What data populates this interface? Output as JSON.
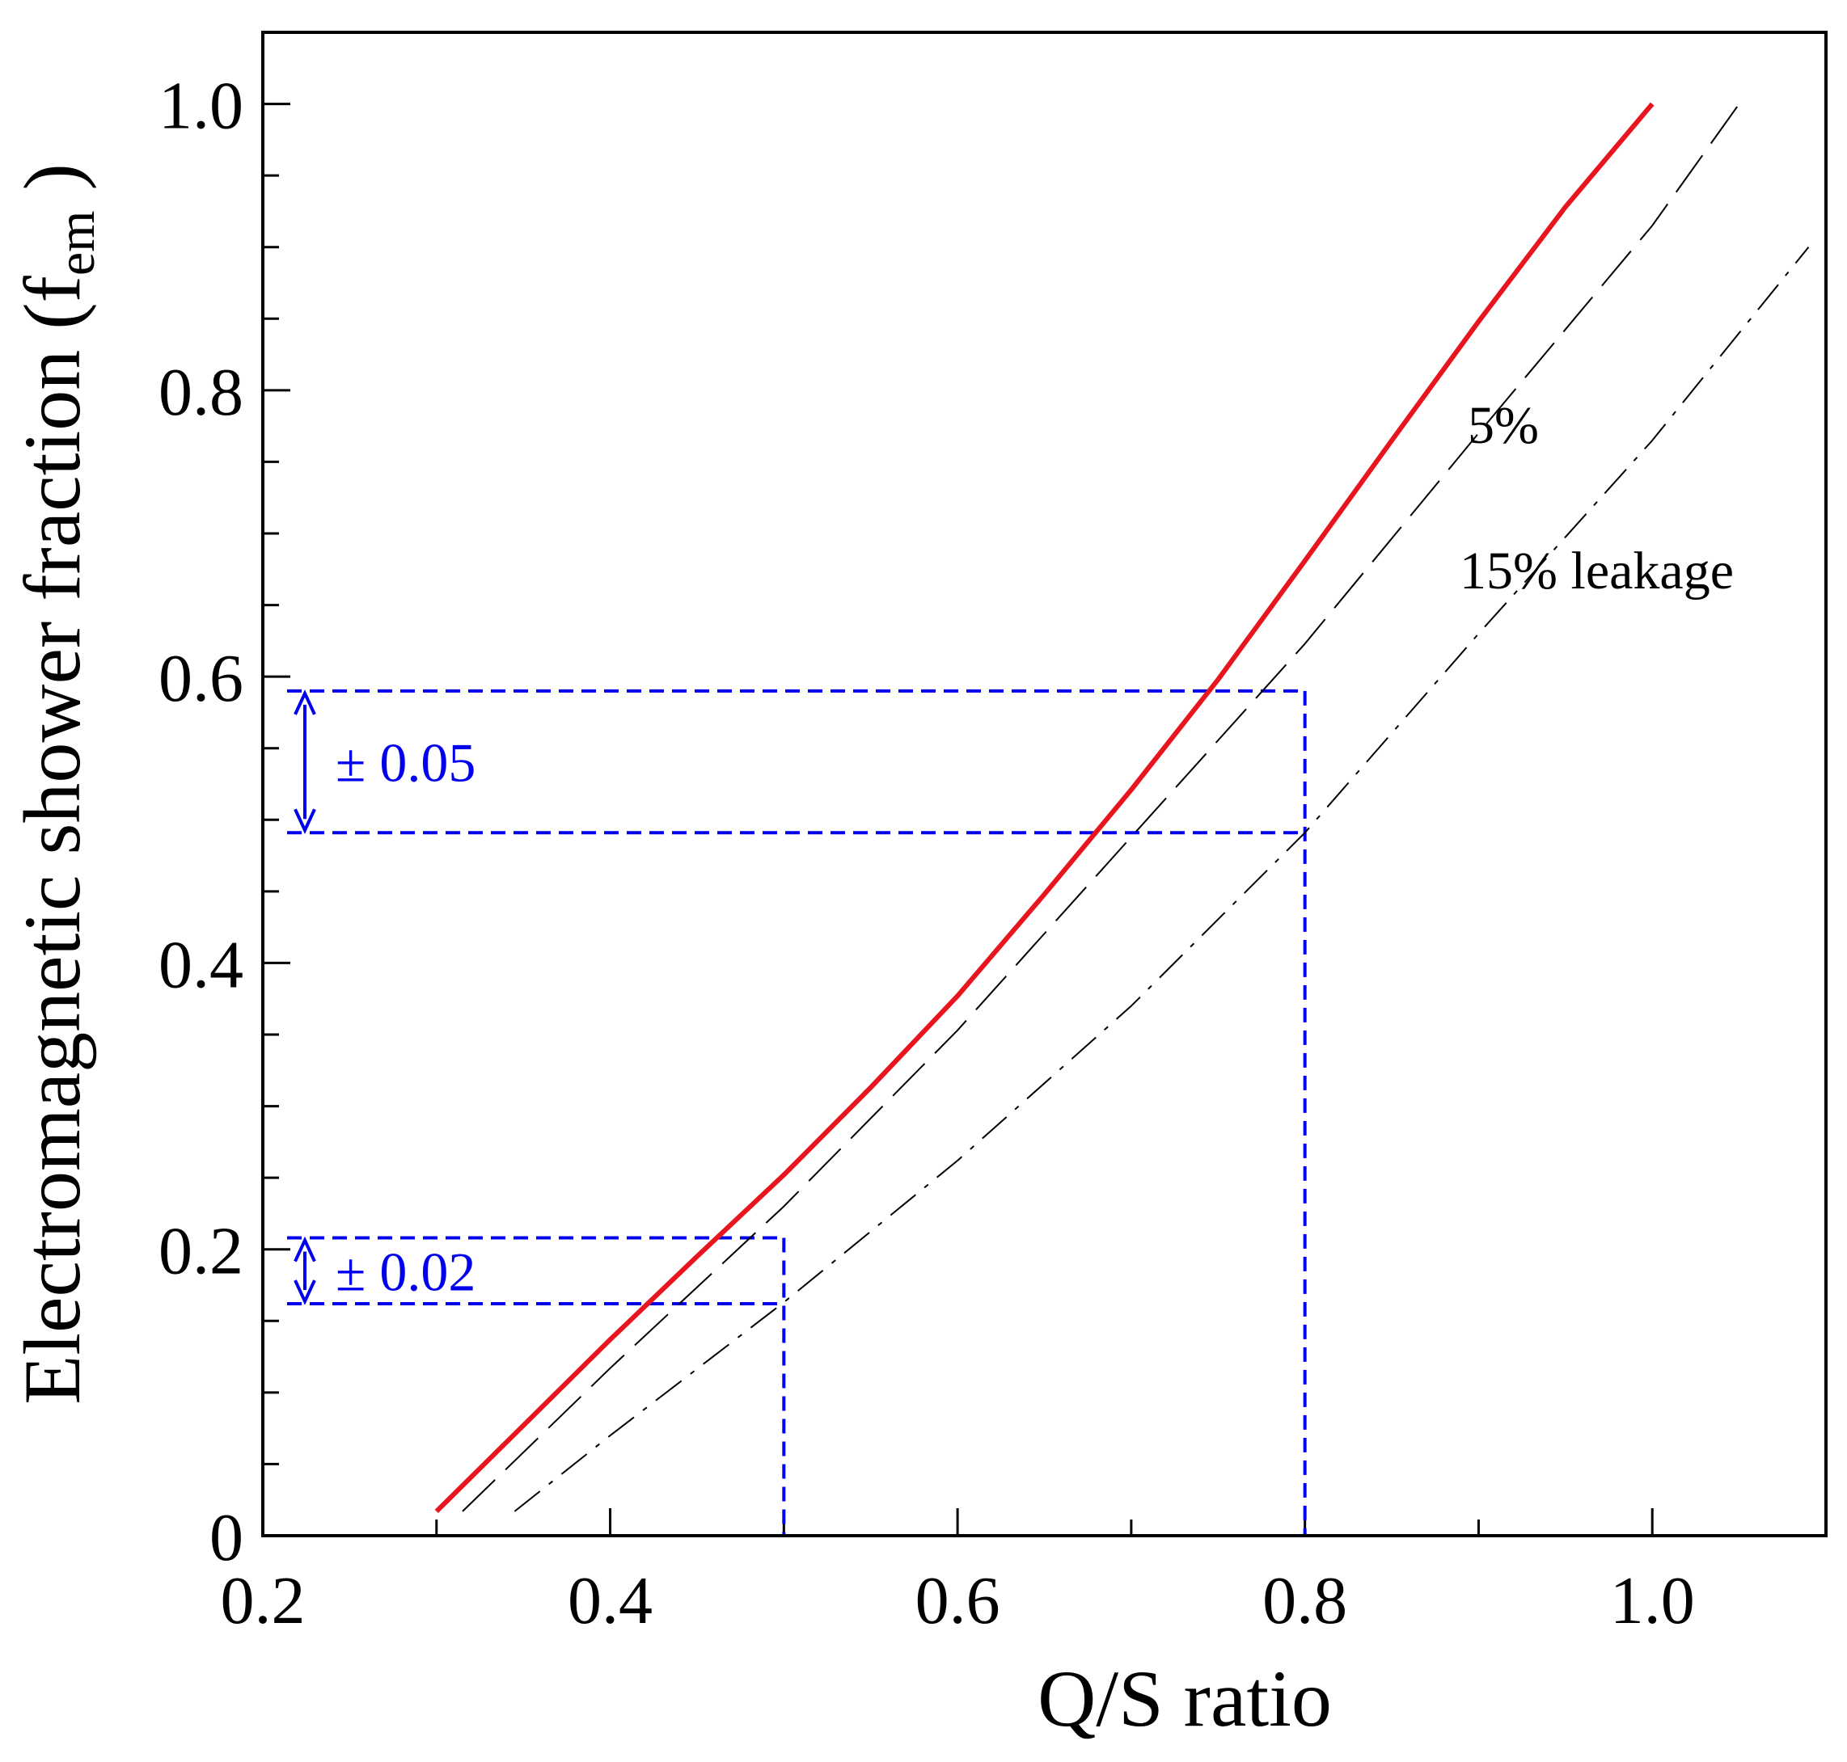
{
  "chart_data": {
    "type": "line",
    "xlabel": "Q/S ratio",
    "ylabel": "Electromagnetic shower fraction",
    "ylabel_symbol": "f",
    "ylabel_subscript": "em",
    "xlim": [
      0.2,
      1.1
    ],
    "ylim": [
      0.0,
      1.05
    ],
    "x_ticks": [
      {
        "value": 0.2,
        "label": "0.2"
      },
      {
        "value": 0.4,
        "label": "0.4"
      },
      {
        "value": 0.6,
        "label": "0.6"
      },
      {
        "value": 0.8,
        "label": "0.8"
      },
      {
        "value": 1.0,
        "label": "1.0"
      }
    ],
    "y_ticks": [
      {
        "value": 0.0,
        "label": "0"
      },
      {
        "value": 0.2,
        "label": "0.2"
      },
      {
        "value": 0.4,
        "label": "0.4"
      },
      {
        "value": 0.6,
        "label": "0.6"
      },
      {
        "value": 0.8,
        "label": "0.8"
      },
      {
        "value": 1.0,
        "label": "1.0"
      }
    ],
    "x_minor_step": 0.1,
    "y_minor_step": 0.05,
    "grid": false,
    "series": [
      {
        "name": "",
        "style": "solid",
        "color": "#e8141e",
        "x": [
          0.3,
          0.35,
          0.4,
          0.45,
          0.5,
          0.55,
          0.6,
          0.65,
          0.7,
          0.75,
          0.8,
          0.85,
          0.9,
          0.95,
          1.0
        ],
        "y": [
          0.017,
          0.077,
          0.137,
          0.195,
          0.252,
          0.313,
          0.377,
          0.448,
          0.521,
          0.598,
          0.681,
          0.765,
          0.848,
          0.928,
          1.0
        ]
      },
      {
        "name": "5%",
        "style": "dash",
        "color": "#000000",
        "x": [
          0.315,
          0.4,
          0.5,
          0.6,
          0.7,
          0.8,
          0.9,
          1.0,
          1.05
        ],
        "y": [
          0.017,
          0.117,
          0.23,
          0.353,
          0.488,
          0.623,
          0.77,
          0.915,
          1.0
        ]
      },
      {
        "name": "15% leakage",
        "style": "dashdot",
        "color": "#000000",
        "x": [
          0.345,
          0.4,
          0.5,
          0.6,
          0.7,
          0.8,
          0.9,
          1.0,
          1.09
        ],
        "y": [
          0.017,
          0.07,
          0.163,
          0.262,
          0.37,
          0.491,
          0.63,
          0.765,
          0.9
        ]
      }
    ],
    "annotations": {
      "curve_label_5": "5%",
      "curve_label_15": "15% leakage",
      "band_high_label": "± 0.05",
      "band_low_label": "± 0.02",
      "annotation_color": "#0000ee",
      "band_high": {
        "x": 0.8,
        "y_low": 0.491,
        "y_high": 0.59
      },
      "band_low": {
        "x": 0.5,
        "y_low": 0.162,
        "y_high": 0.208
      }
    }
  }
}
